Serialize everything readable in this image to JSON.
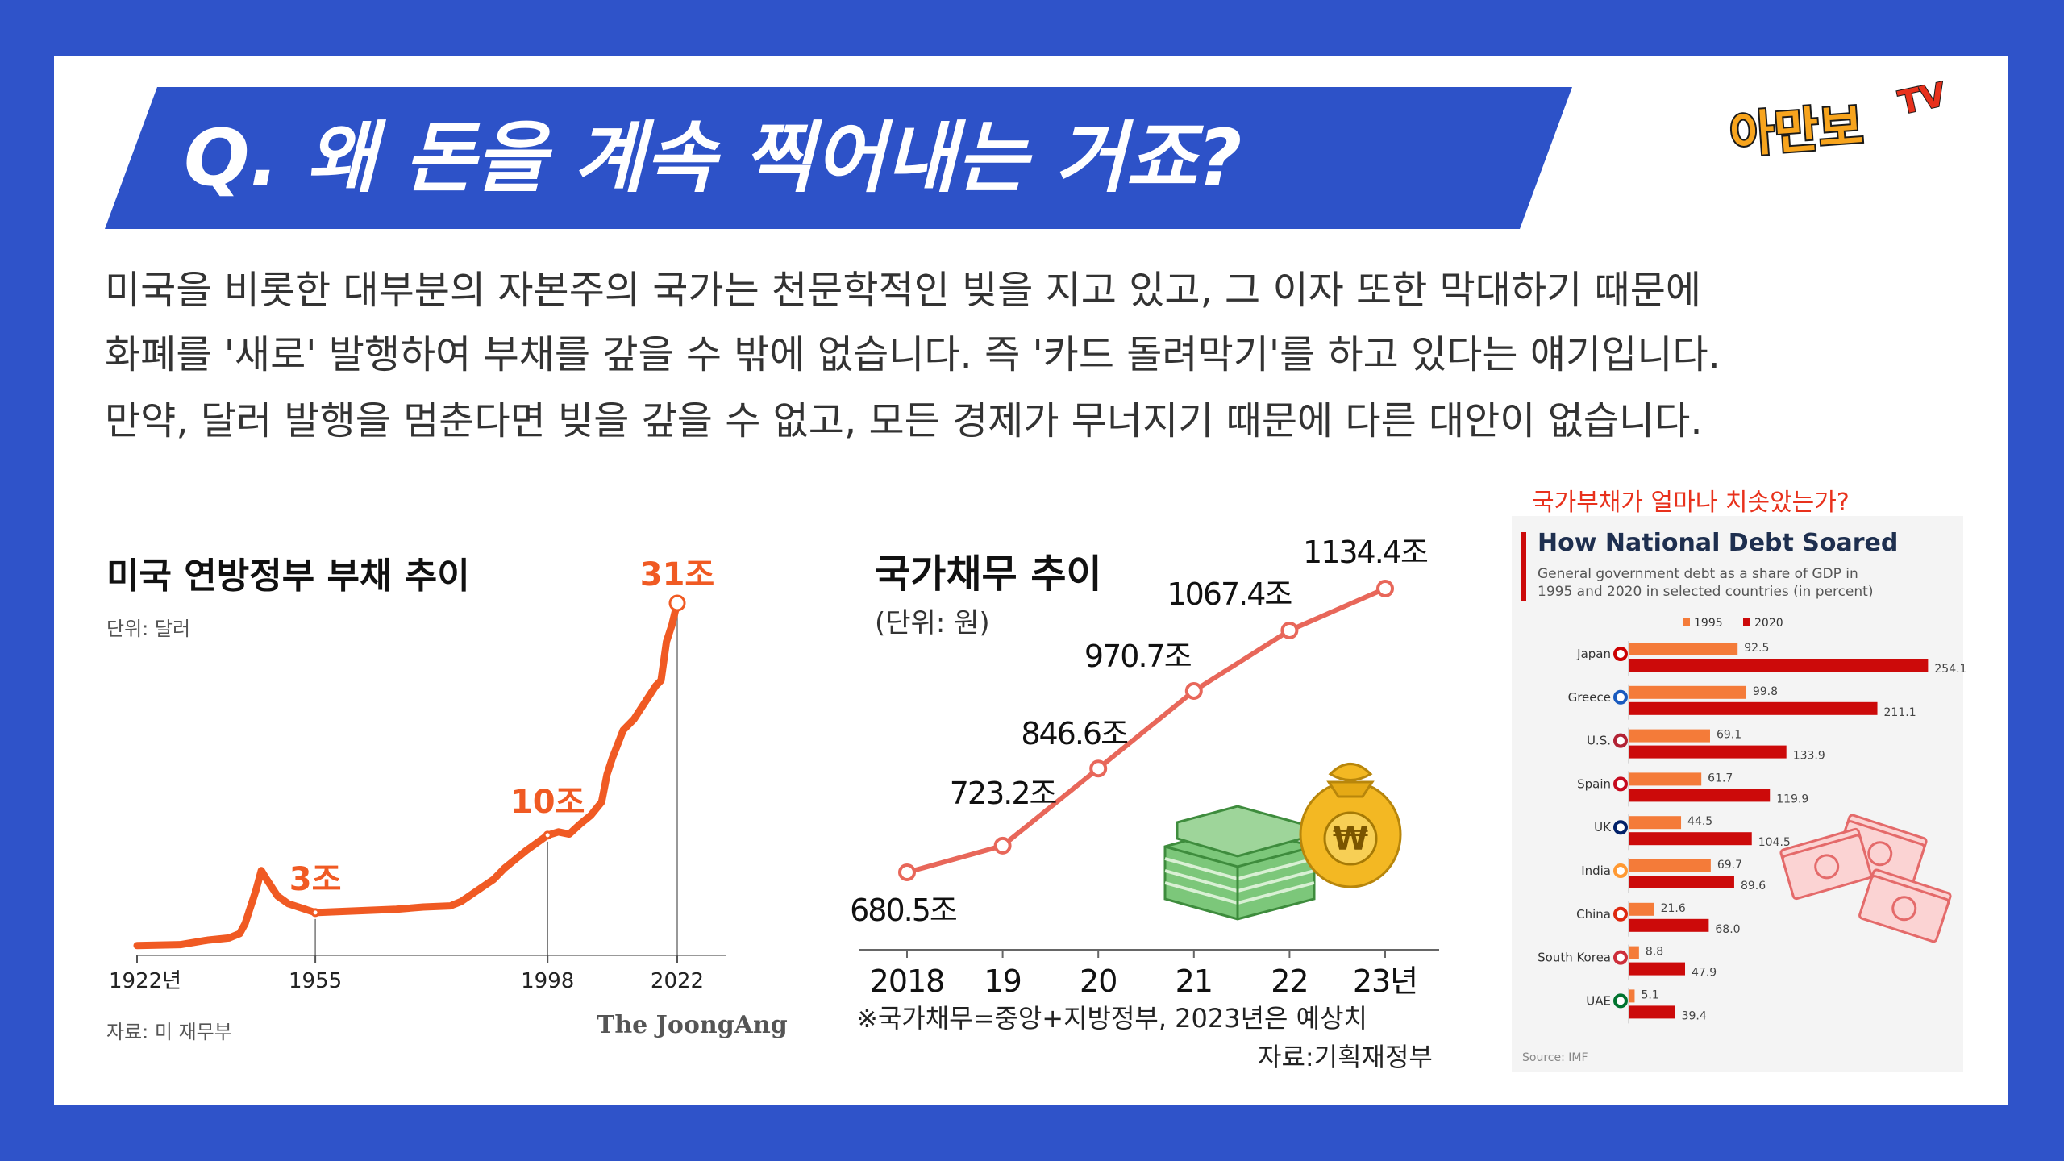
{
  "header": {
    "title": "Q. 왜 돈을 계속 찍어내는 거죠?",
    "logo_main": "아만보",
    "logo_tv": "TV"
  },
  "body_text": {
    "line1": "미국을 비롯한 대부분의 자본주의 국가는 천문학적인 빚을 지고 있고, 그 이자 또한 막대하기 때문에",
    "line2": "화폐를 '새로' 발행하여 부채를 갚을 수 밖에 없습니다. 즉 '카드 돌려막기'를 하고 있다는 얘기입니다.",
    "line3": "만약, 달러 발행을 멈춘다면 빚을 갚을 수 없고, 모든 경제가 무너지기 때문에 다른 대안이 없습니다."
  },
  "colors": {
    "background": "#2f53c9",
    "banner": "#2d52c8",
    "us_debt_line": "#f05a23",
    "kr_debt_line": "#e8675a",
    "bar_1995": "#f47b39",
    "bar_2020": "#cc0a0a",
    "imf_caption": "#e8311c"
  },
  "chart_data": [
    {
      "type": "line",
      "title": "미국 연방정부 부채 추이",
      "unit_label": "단위: 달러",
      "source": "자료: 미 재무부",
      "publisher": "The JoongAng",
      "x_ticks": [
        "1922년",
        "1955",
        "1998",
        "2022"
      ],
      "xlim": [
        1922,
        2022
      ],
      "ylim": [
        0,
        31
      ],
      "annotations": [
        {
          "x": 1955,
          "y": 3,
          "label": "3조"
        },
        {
          "x": 1998,
          "y": 10,
          "label": "10조"
        },
        {
          "x": 2022,
          "y": 31,
          "label": "31조"
        }
      ],
      "series": [
        {
          "x": [
            1922,
            1930,
            1935,
            1939,
            1941,
            1942,
            1943,
            1944,
            1945,
            1946,
            1948,
            1950,
            1955,
            1960,
            1965,
            1970,
            1975,
            1980,
            1982,
            1985,
            1988,
            1990,
            1992,
            1994,
            1996,
            1998,
            2000,
            2002,
            2004,
            2006,
            2008,
            2009,
            2010,
            2012,
            2014,
            2016,
            2018,
            2019,
            2020,
            2021,
            2022
          ],
          "y": [
            0.02,
            0.1,
            0.5,
            0.7,
            1.1,
            2.0,
            3.5,
            5.0,
            6.8,
            6.0,
            4.5,
            3.8,
            3.0,
            3.1,
            3.2,
            3.3,
            3.5,
            3.6,
            4.0,
            5.0,
            6.0,
            7.0,
            7.8,
            8.6,
            9.3,
            10.0,
            10.3,
            10.1,
            11.0,
            11.8,
            13.0,
            15.5,
            17.0,
            19.5,
            20.5,
            22.0,
            23.5,
            24.0,
            27.5,
            29.0,
            31.0
          ]
        }
      ]
    },
    {
      "type": "line",
      "title": "국가채무 추이",
      "unit_label": "(단위: 원)",
      "note": "※국가채무=중앙+지방정부, 2023년은 예상치",
      "source": "자료:기획재정부",
      "categories": [
        "2018",
        "19",
        "20",
        "21",
        "22",
        "23년"
      ],
      "series": [
        {
          "values": [
            680.5,
            723.2,
            846.6,
            970.7,
            1067.4,
            1134.4
          ],
          "labels": [
            "680.5조",
            "723.2조",
            "846.6조",
            "970.7조",
            "1067.4조",
            "1134.4조"
          ]
        }
      ],
      "ylim": [
        650,
        1150
      ]
    },
    {
      "type": "bar",
      "caption": "국가부채가 얼마나 치솟았는가?",
      "title": "How National Debt Soared",
      "subtitle1": "General government debt as a share of GDP in",
      "subtitle2": "1995 and 2020 in selected countries (in percent)",
      "source": "Source: IMF",
      "categories": [
        "Japan",
        "Greece",
        "U.S.",
        "Spain",
        "UK",
        "India",
        "China",
        "South Korea",
        "UAE"
      ],
      "series": [
        {
          "name": "1995",
          "values": [
            92.5,
            99.8,
            69.1,
            61.7,
            44.5,
            69.7,
            21.6,
            8.8,
            5.1
          ],
          "labels": [
            "92.5",
            "99.8",
            "69.1",
            "61.7",
            "44.5",
            "69.7",
            "21.6",
            "8.8",
            "5.1"
          ]
        },
        {
          "name": "2020",
          "values": [
            254.1,
            211.1,
            133.9,
            119.9,
            104.5,
            89.6,
            68.0,
            47.9,
            39.4
          ],
          "labels": [
            "254.1",
            "211.1",
            "133.9",
            "119.9",
            "104.5",
            "89.6",
            "68.0",
            "47.9",
            "39.4"
          ]
        }
      ],
      "xlim": [
        0,
        260
      ]
    }
  ]
}
